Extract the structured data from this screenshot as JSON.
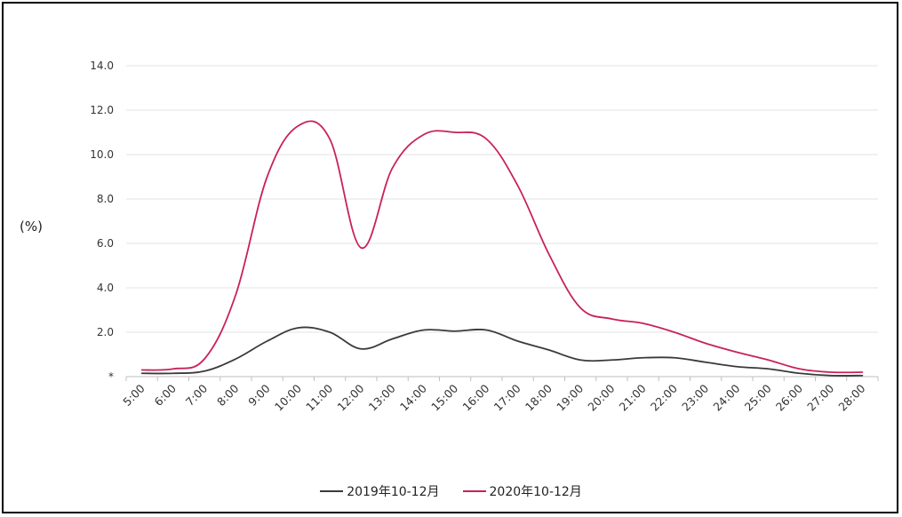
{
  "chart_data": {
    "type": "line",
    "ylabel": "(%)",
    "ylim": [
      0,
      14
    ],
    "yticks": [
      "*",
      "2.0",
      "4.0",
      "6.0",
      "8.0",
      "10.0",
      "12.0",
      "14.0"
    ],
    "categories": [
      "5:00",
      "6:00",
      "7:00",
      "8:00",
      "9:00",
      "10:00",
      "11:00",
      "12:00",
      "13:00",
      "14:00",
      "15:00",
      "16:00",
      "17:00",
      "18:00",
      "19:00",
      "20:00",
      "21:00",
      "22:00",
      "23:00",
      "24:00",
      "25:00",
      "26:00",
      "27:00",
      "28:00"
    ],
    "grid": true,
    "legend_position": "bottom",
    "series": [
      {
        "name": "2019年10-12月",
        "color": "#3a3a3a",
        "values": [
          0.15,
          0.15,
          0.25,
          0.8,
          1.6,
          2.2,
          2.0,
          1.25,
          1.7,
          2.1,
          2.05,
          2.1,
          1.6,
          1.2,
          0.75,
          0.75,
          0.85,
          0.85,
          0.65,
          0.45,
          0.35,
          0.15,
          0.05,
          0.05
        ]
      },
      {
        "name": "2020年10-12月",
        "color": "#c8215a",
        "values": [
          0.3,
          0.35,
          0.8,
          3.7,
          9.0,
          11.3,
          10.7,
          5.8,
          9.4,
          10.9,
          11.0,
          10.7,
          8.6,
          5.5,
          3.1,
          2.6,
          2.4,
          2.0,
          1.5,
          1.1,
          0.75,
          0.35,
          0.2,
          0.2
        ]
      }
    ]
  }
}
